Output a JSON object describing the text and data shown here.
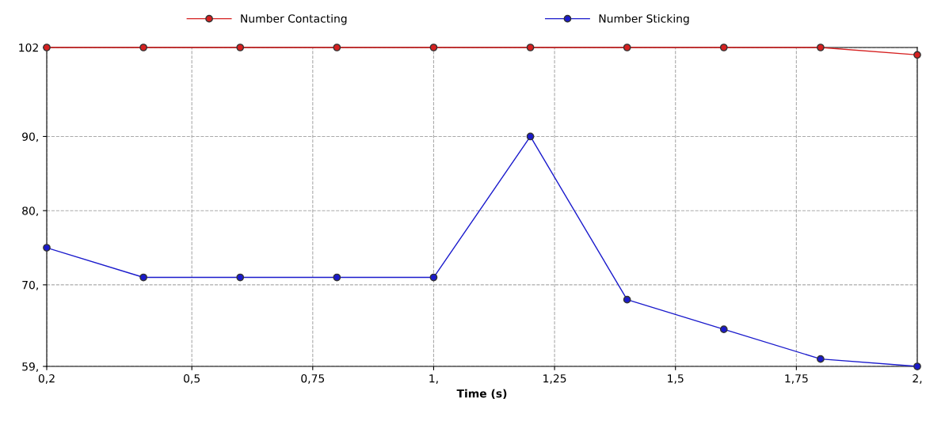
{
  "chart_data": {
    "type": "line",
    "xlabel": "Time (s)",
    "x": [
      0.2,
      0.4,
      0.6,
      0.8,
      1.0,
      1.2,
      1.4,
      1.6,
      1.8,
      2.0
    ],
    "series": [
      {
        "name": "Number Contacting",
        "color": "#d62020",
        "values": [
          102,
          102,
          102,
          102,
          102,
          102,
          102,
          102,
          102,
          101
        ]
      },
      {
        "name": "Number Sticking",
        "color": "#1a1acc",
        "values": [
          75,
          71,
          71,
          71,
          71,
          90,
          68,
          64,
          60,
          59
        ]
      }
    ],
    "xlim": [
      0.2,
      2.0
    ],
    "xticks": [
      {
        "value": 0.2,
        "label": "0,2"
      },
      {
        "value": 0.5,
        "label": "0,5"
      },
      {
        "value": 0.75,
        "label": "0,75"
      },
      {
        "value": 1,
        "label": "1,"
      },
      {
        "value": 1.25,
        "label": "1,25"
      },
      {
        "value": 1.5,
        "label": "1,5"
      },
      {
        "value": 1.75,
        "label": "1,75"
      },
      {
        "value": 2,
        "label": "2,"
      }
    ],
    "ylim": [
      59,
      102
    ],
    "yticks": [
      {
        "value": 59,
        "label": "59,"
      },
      {
        "value": 70,
        "label": "70,"
      },
      {
        "value": 80,
        "label": "80,"
      },
      {
        "value": 90,
        "label": "90,"
      },
      102
    ],
    "grid": true,
    "legend": "top",
    "marker": "circle",
    "line_style": "solid"
  }
}
